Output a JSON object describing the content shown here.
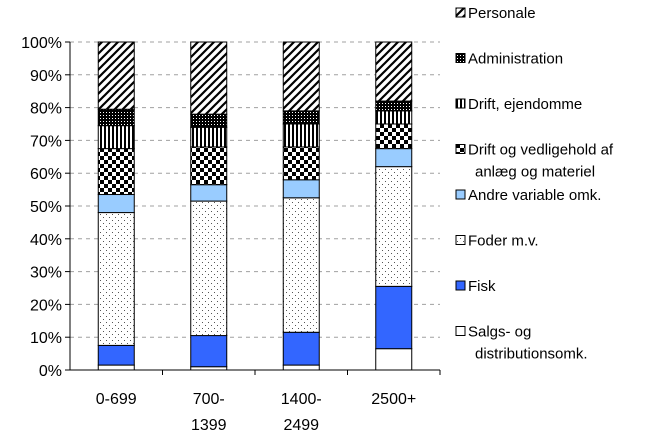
{
  "chart_data": {
    "type": "bar",
    "stacked": true,
    "percent": true,
    "categories": [
      "0-699",
      "700-1399",
      "1400-2499",
      "2500+"
    ],
    "category_lines": [
      [
        "0-699"
      ],
      [
        "700-",
        "1399"
      ],
      [
        "1400-",
        "2499"
      ],
      [
        "2500+"
      ]
    ],
    "y_ticks": [
      "0%",
      "10%",
      "20%",
      "30%",
      "40%",
      "50%",
      "60%",
      "70%",
      "80%",
      "90%",
      "100%"
    ],
    "ylim": [
      0,
      100
    ],
    "grid": true,
    "legend_position": "right",
    "series": [
      {
        "name": "Salgs- og distributionsomk.",
        "legend_lines": [
          "Salgs- og",
          "distributionsomk."
        ],
        "pattern": "blank",
        "color": "#ffffff",
        "values": [
          1.5,
          1,
          1.5,
          6.5
        ]
      },
      {
        "name": "Fisk",
        "legend_lines": [
          "Fisk"
        ],
        "pattern": "solid",
        "color": "#3366ff",
        "values": [
          6,
          9.5,
          10,
          19
        ]
      },
      {
        "name": "Foder m.v.",
        "legend_lines": [
          "Foder m.v."
        ],
        "pattern": "dots",
        "color": "#ffffff",
        "values": [
          40.5,
          41,
          41,
          36.5
        ]
      },
      {
        "name": "Andre variable omk.",
        "legend_lines": [
          "Andre variable omk."
        ],
        "pattern": "solid",
        "color": "#99ccff",
        "values": [
          5.5,
          5,
          5.5,
          5.5
        ]
      },
      {
        "name": "Drift og vedligehold af anlæg og materiel",
        "legend_lines": [
          "Drift og vedligehold af",
          "anlæg og materiel"
        ],
        "pattern": "checker",
        "color": "#000000",
        "values": [
          14,
          11.5,
          10,
          7.5
        ]
      },
      {
        "name": "Drift, ejendomme",
        "legend_lines": [
          "Drift, ejendomme"
        ],
        "pattern": "vlines",
        "color": "#000000",
        "values": [
          7,
          6,
          7,
          4
        ]
      },
      {
        "name": "Administration",
        "legend_lines": [
          "Administration"
        ],
        "pattern": "dense",
        "color": "#000000",
        "values": [
          5,
          4,
          4,
          3
        ]
      },
      {
        "name": "Personale",
        "legend_lines": [
          "Personale"
        ],
        "pattern": "diag",
        "color": "#000000",
        "values": [
          20.5,
          22,
          21,
          18
        ]
      }
    ]
  }
}
